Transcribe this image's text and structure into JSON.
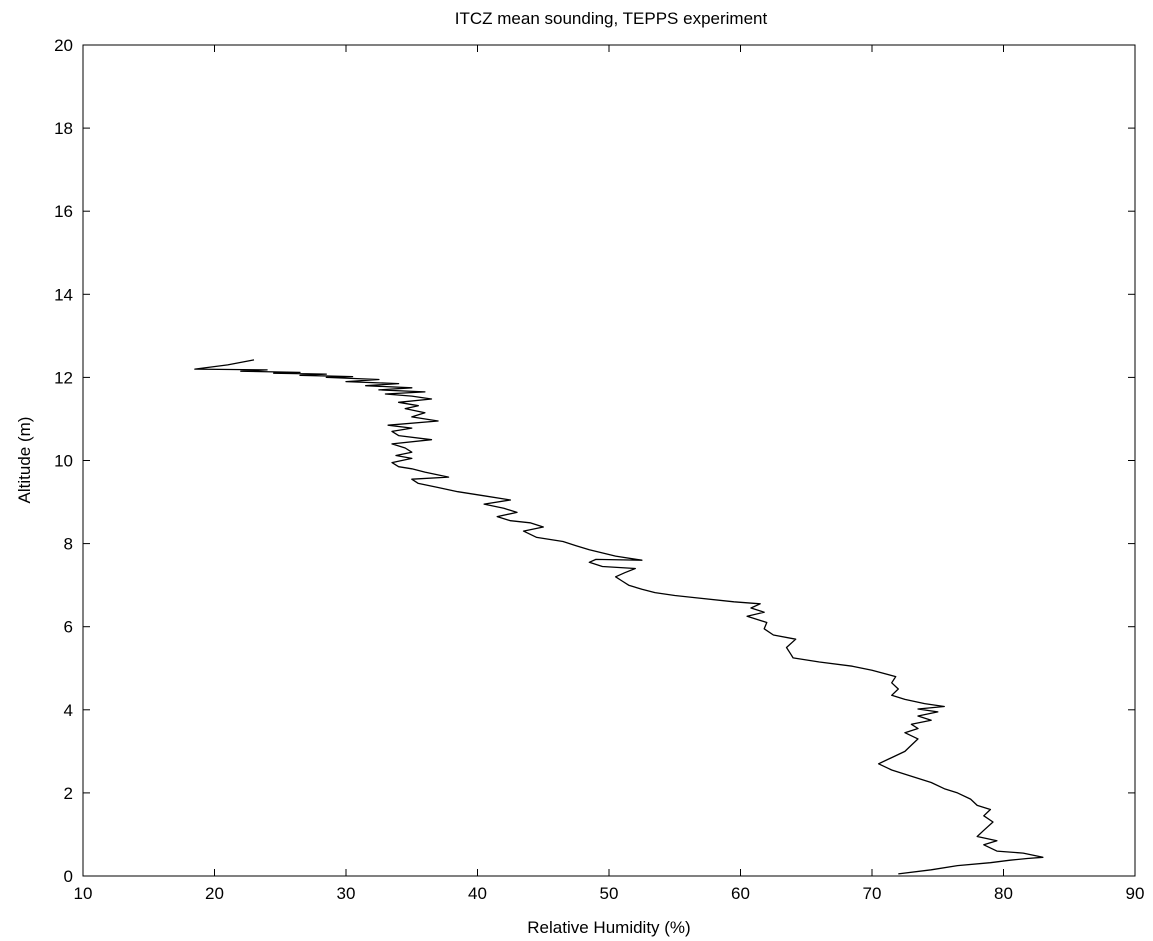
{
  "chart_data": {
    "type": "line",
    "title": "ITCZ mean sounding, TEPPS experiment",
    "xlabel": "Relative Humidity (%)",
    "ylabel": "Altitude (m)",
    "xlim": [
      10,
      90
    ],
    "ylim": [
      0,
      20
    ],
    "xticks": [
      10,
      20,
      30,
      40,
      50,
      60,
      70,
      80,
      90
    ],
    "yticks": [
      0,
      2,
      4,
      6,
      8,
      10,
      12,
      14,
      16,
      18,
      20
    ],
    "grid": false,
    "series": [
      {
        "color": "#000000",
        "x": [
          72.0,
          74.5,
          76.5,
          79.0,
          80.5,
          81.8,
          83.0,
          81.5,
          79.5,
          78.5,
          79.5,
          78.0,
          78.5,
          79.2,
          78.5,
          79.0,
          78.0,
          77.5,
          76.5,
          75.5,
          74.5,
          73.0,
          71.5,
          70.5,
          71.5,
          72.5,
          73.0,
          73.5,
          72.5,
          73.5,
          73.0,
          74.5,
          73.5,
          75.0,
          73.5,
          75.5,
          74.0,
          72.5,
          71.5,
          72.0,
          71.5,
          71.8,
          70.0,
          68.5,
          66.0,
          64.0,
          63.8,
          63.5,
          64.2,
          62.5,
          61.8,
          62.0,
          60.5,
          61.8,
          60.8,
          61.5,
          59.5,
          56.5,
          55.0,
          53.5,
          52.5,
          51.5,
          51.0,
          50.5,
          51.2,
          52.0,
          49.5,
          48.5,
          49.0,
          52.5,
          50.5,
          48.5,
          47.5,
          46.5,
          44.5,
          43.5,
          45.0,
          44.0,
          42.5,
          41.5,
          43.0,
          42.0,
          40.5,
          42.5,
          40.5,
          38.5,
          37.0,
          35.5,
          35.0,
          37.8,
          36.0,
          35.0,
          34.0,
          33.5,
          35.0,
          33.8,
          35.0,
          34.5,
          33.5,
          36.5,
          34.0,
          33.5,
          35.0,
          33.2,
          37.0,
          35.0,
          36.0,
          34.5,
          35.5,
          34.0,
          36.5,
          35.0,
          33.0,
          36.0,
          32.5,
          35.0,
          31.5,
          34.0,
          30.0,
          32.5,
          28.5,
          30.5,
          26.5,
          28.5,
          24.5,
          26.5,
          22.0,
          24.0,
          18.5,
          21.0,
          23.0
        ],
        "y": [
          0.05,
          0.15,
          0.25,
          0.32,
          0.38,
          0.42,
          0.45,
          0.55,
          0.6,
          0.75,
          0.85,
          0.95,
          1.1,
          1.3,
          1.45,
          1.6,
          1.7,
          1.85,
          2.0,
          2.1,
          2.25,
          2.4,
          2.55,
          2.7,
          2.85,
          3.0,
          3.15,
          3.3,
          3.45,
          3.55,
          3.65,
          3.75,
          3.85,
          3.95,
          4.02,
          4.08,
          4.15,
          4.25,
          4.35,
          4.5,
          4.65,
          4.8,
          4.95,
          5.05,
          5.15,
          5.25,
          5.35,
          5.5,
          5.7,
          5.8,
          5.95,
          6.1,
          6.25,
          6.35,
          6.45,
          6.55,
          6.6,
          6.7,
          6.75,
          6.82,
          6.9,
          7.0,
          7.1,
          7.2,
          7.3,
          7.4,
          7.45,
          7.55,
          7.62,
          7.6,
          7.7,
          7.85,
          7.95,
          8.05,
          8.15,
          8.3,
          8.4,
          8.5,
          8.55,
          8.65,
          8.75,
          8.85,
          8.95,
          9.05,
          9.15,
          9.25,
          9.35,
          9.45,
          9.55,
          9.6,
          9.72,
          9.8,
          9.85,
          9.95,
          10.05,
          10.12,
          10.2,
          10.3,
          10.4,
          10.5,
          10.6,
          10.7,
          10.78,
          10.85,
          10.95,
          11.05,
          11.15,
          11.25,
          11.32,
          11.4,
          11.48,
          11.55,
          11.6,
          11.65,
          11.7,
          11.75,
          11.8,
          11.85,
          11.9,
          11.95,
          12.0,
          12.02,
          12.05,
          12.08,
          12.1,
          12.12,
          12.15,
          12.18,
          12.2,
          12.3,
          12.42
        ]
      }
    ]
  }
}
